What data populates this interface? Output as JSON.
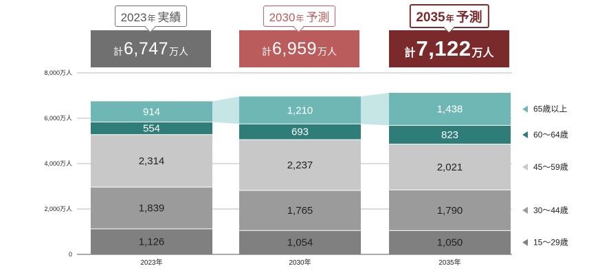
{
  "colors": {
    "age_65_plus": "#6fb7b4",
    "age_60_64": "#2f7d79",
    "age_45_59": "#c8c8c8",
    "age_30_44": "#9b9b9b",
    "age_15_29": "#808080",
    "connector": "#c6e6e5",
    "callout_2023": "#707070",
    "callout_2030": "#b95c5b",
    "callout_2035": "#7b2a2c"
  },
  "callouts": [
    {
      "year": "2023",
      "year_unit": "年",
      "kind": "実績",
      "prefix": "計",
      "value": "6,747",
      "unit": "万人"
    },
    {
      "year": "2030",
      "year_unit": "年",
      "kind": "予測",
      "prefix": "計",
      "value": "6,959",
      "unit": "万人"
    },
    {
      "year": "2035",
      "year_unit": "年",
      "kind": "予測",
      "prefix": "計",
      "value": "7,122",
      "unit": "万人"
    }
  ],
  "chart_data": {
    "type": "bar",
    "stacked": true,
    "categories": [
      "2023年",
      "2030年",
      "2035年"
    ],
    "series": [
      {
        "name": "15〜29歳",
        "values": [
          1126,
          1054,
          1050
        ],
        "color": "#808080",
        "label_color": "#222222"
      },
      {
        "name": "30〜44歳",
        "values": [
          1839,
          1765,
          1790
        ],
        "color": "#9b9b9b",
        "label_color": "#222222"
      },
      {
        "name": "45〜59歳",
        "values": [
          2314,
          2237,
          2021
        ],
        "color": "#c8c8c8",
        "label_color": "#222222"
      },
      {
        "name": "60〜64歳",
        "values": [
          554,
          693,
          823
        ],
        "color": "#2f7d79",
        "label_color": "#ffffff"
      },
      {
        "name": "65歳以上",
        "values": [
          914,
          1210,
          1438
        ],
        "color": "#6fb7b4",
        "label_color": "#ffffff"
      }
    ],
    "yticks": [
      0,
      2000,
      4000,
      6000,
      8000
    ],
    "ytick_labels": [
      "0",
      "2,000万人",
      "4,000万人",
      "6,000万人",
      "8,000万人"
    ],
    "ylim": [
      0,
      8000
    ],
    "grid": true,
    "legend_position": "right"
  }
}
